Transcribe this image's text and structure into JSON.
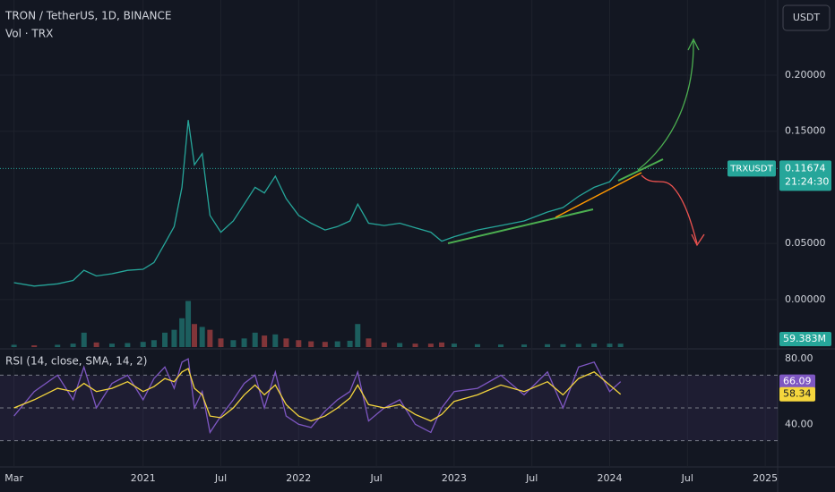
{
  "chart_data": [
    {
      "type": "line",
      "title": "TRON / TetherUS, 1D, BINANCE",
      "currency": "USDT",
      "countdown": "21:24:30",
      "x": [
        2020.17,
        2020.3,
        2020.45,
        2020.55,
        2020.62,
        2020.7,
        2020.8,
        2020.9,
        2021.0,
        2021.07,
        2021.14,
        2021.2,
        2021.25,
        2021.29,
        2021.33,
        2021.38,
        2021.43,
        2021.5,
        2021.58,
        2021.65,
        2021.72,
        2021.78,
        2021.85,
        2021.92,
        2022.0,
        2022.08,
        2022.17,
        2022.25,
        2022.33,
        2022.38,
        2022.45,
        2022.55,
        2022.65,
        2022.75,
        2022.85,
        2022.92,
        2023.0,
        2023.15,
        2023.3,
        2023.45,
        2023.6,
        2023.7,
        2023.8,
        2023.9,
        2024.0,
        2024.07
      ],
      "series": [
        {
          "name": "TRXUSDT",
          "color": "#26a69a",
          "values": [
            0.015,
            0.012,
            0.014,
            0.017,
            0.026,
            0.021,
            0.023,
            0.026,
            0.027,
            0.033,
            0.05,
            0.065,
            0.1,
            0.16,
            0.12,
            0.13,
            0.075,
            0.06,
            0.07,
            0.085,
            0.1,
            0.095,
            0.11,
            0.09,
            0.075,
            0.068,
            0.062,
            0.065,
            0.07,
            0.085,
            0.068,
            0.066,
            0.068,
            0.064,
            0.06,
            0.052,
            0.056,
            0.062,
            0.066,
            0.07,
            0.078,
            0.082,
            0.092,
            0.1,
            0.105,
            0.11674
          ]
        }
      ],
      "xlim": [
        2020.08,
        2025.08
      ],
      "xticks": [
        {
          "value": 2020.17,
          "label": "Mar"
        },
        2021,
        {
          "value": 2021.5,
          "label": "Jul"
        },
        2022,
        {
          "value": 2022.5,
          "label": "Jul"
        },
        2023,
        {
          "value": 2023.5,
          "label": "Jul"
        },
        2024,
        {
          "value": 2024.5,
          "label": "Jul"
        },
        2025
      ],
      "ylim": [
        -0.044,
        0.267
      ],
      "yticks": [
        {
          "value": 0,
          "label": "0.00000"
        },
        {
          "value": 0.05,
          "label": "0.05000"
        },
        {
          "value": 0.15,
          "label": "0.15000"
        },
        {
          "value": 0.2,
          "label": "0.20000"
        }
      ],
      "grid": true
    },
    {
      "type": "bar",
      "title": "Vol · TRX",
      "x": [
        2020.17,
        2020.3,
        2020.45,
        2020.55,
        2020.62,
        2020.7,
        2020.8,
        2020.9,
        2021.0,
        2021.07,
        2021.14,
        2021.2,
        2021.25,
        2021.29,
        2021.33,
        2021.38,
        2021.43,
        2021.5,
        2021.58,
        2021.65,
        2021.72,
        2021.78,
        2021.85,
        2021.92,
        2022.0,
        2022.08,
        2022.17,
        2022.25,
        2022.33,
        2022.38,
        2022.45,
        2022.55,
        2022.65,
        2022.75,
        2022.85,
        2022.92,
        2023.0,
        2023.15,
        2023.3,
        2023.45,
        2023.6,
        2023.7,
        2023.8,
        2023.9,
        2024.0,
        2024.07
      ],
      "values": [
        40,
        30,
        40,
        60,
        250,
        80,
        60,
        70,
        90,
        120,
        250,
        300,
        500,
        800,
        400,
        350,
        300,
        150,
        120,
        150,
        250,
        200,
        220,
        150,
        120,
        100,
        90,
        100,
        110,
        400,
        150,
        80,
        70,
        60,
        60,
        80,
        60,
        50,
        45,
        45,
        50,
        50,
        55,
        60,
        60,
        59.383
      ],
      "last_label": "59.383M",
      "colors": [
        "#26a69a",
        "#ef5350"
      ],
      "ylim": [
        0,
        900
      ]
    },
    {
      "type": "line",
      "title": "RSI (14, close, SMA, 14, 2)",
      "x": [
        2020.17,
        2020.3,
        2020.45,
        2020.55,
        2020.62,
        2020.7,
        2020.8,
        2020.9,
        2021.0,
        2021.07,
        2021.14,
        2021.2,
        2021.25,
        2021.29,
        2021.33,
        2021.38,
        2021.43,
        2021.5,
        2021.58,
        2021.65,
        2021.72,
        2021.78,
        2021.85,
        2021.92,
        2022.0,
        2022.08,
        2022.17,
        2022.25,
        2022.33,
        2022.38,
        2022.45,
        2022.55,
        2022.65,
        2022.75,
        2022.85,
        2022.92,
        2023.0,
        2023.15,
        2023.3,
        2023.45,
        2023.6,
        2023.7,
        2023.8,
        2023.9,
        2024.0,
        2024.07
      ],
      "series": [
        {
          "color": "#7e57c2",
          "values": [
            45,
            60,
            70,
            55,
            75,
            50,
            65,
            70,
            55,
            68,
            75,
            62,
            78,
            80,
            50,
            60,
            35,
            45,
            55,
            65,
            70,
            50,
            72,
            45,
            40,
            38,
            48,
            55,
            60,
            72,
            42,
            50,
            55,
            40,
            35,
            50,
            60,
            62,
            70,
            58,
            72,
            50,
            75,
            78,
            60,
            66.09
          ]
        },
        {
          "color": "#f5d63d",
          "values": [
            50,
            55,
            62,
            60,
            65,
            60,
            62,
            66,
            60,
            63,
            68,
            66,
            72,
            74,
            62,
            58,
            45,
            44,
            50,
            58,
            64,
            58,
            64,
            52,
            45,
            42,
            45,
            50,
            56,
            64,
            52,
            50,
            52,
            46,
            42,
            46,
            54,
            58,
            64,
            60,
            66,
            58,
            68,
            72,
            64,
            58.34
          ]
        }
      ],
      "xlim": [
        2020.08,
        2025.08
      ],
      "ylim": [
        15,
        85
      ],
      "yticks": [
        {
          "value": 40,
          "label": "40.00"
        },
        {
          "value": 80,
          "label": "80.00"
        }
      ],
      "bands": [
        70,
        50,
        30
      ]
    }
  ]
}
